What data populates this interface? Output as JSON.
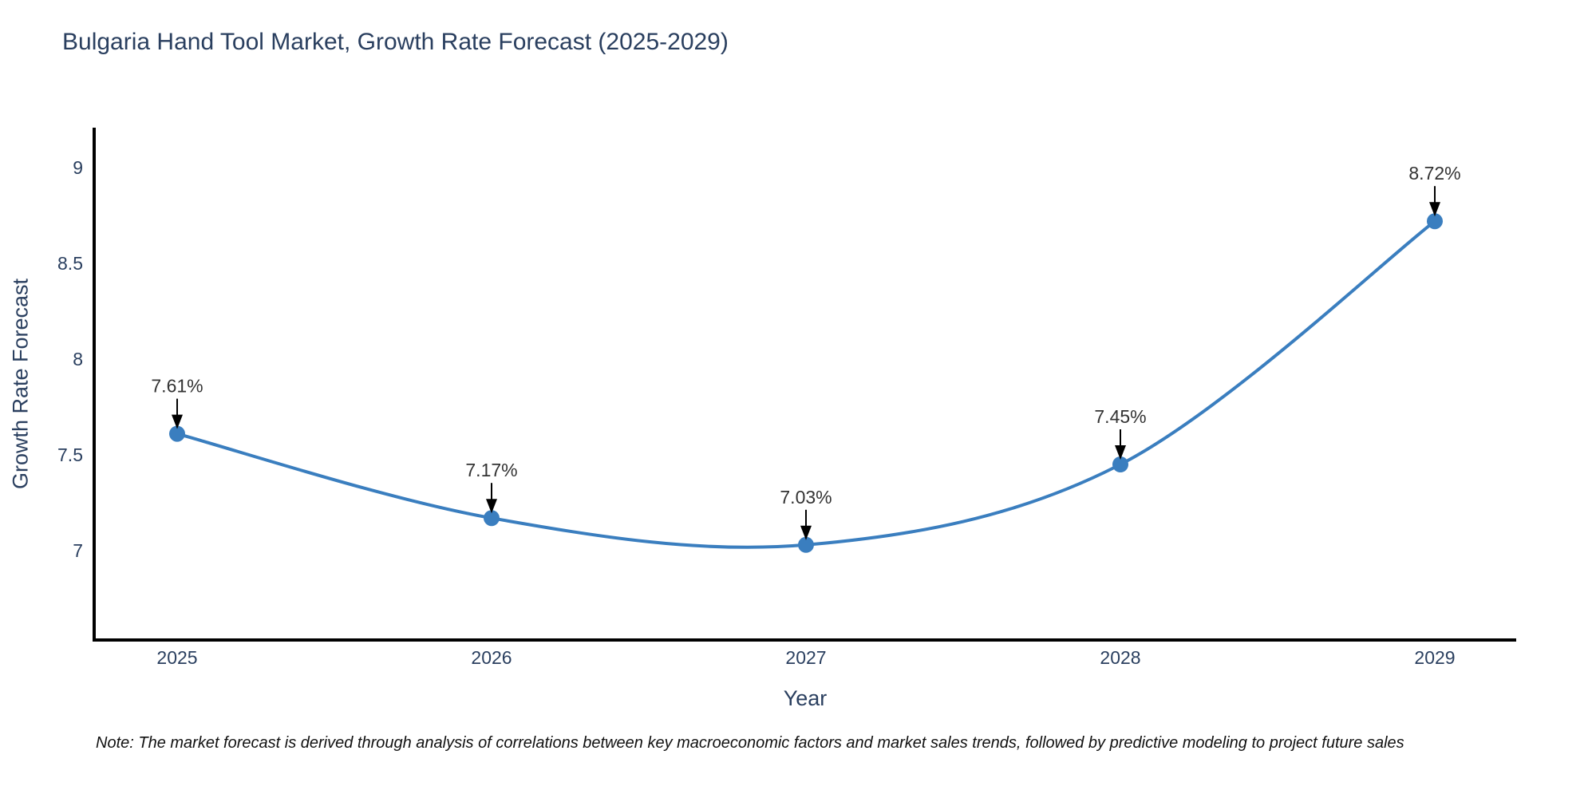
{
  "title": "Bulgaria Hand Tool Market, Growth Rate Forecast (2025-2029)",
  "note": "Note: The market forecast is derived through analysis of correlations between key macroeconomic factors and market sales trends, followed by predictive modeling to project future sales",
  "chart_data": {
    "type": "line",
    "title": "Bulgaria Hand Tool Market, Growth Rate Forecast (2025-2029)",
    "xlabel": "Year",
    "ylabel": "Growth Rate Forecast",
    "x": [
      "2025",
      "2026",
      "2027",
      "2028",
      "2029"
    ],
    "y": [
      7.61,
      7.17,
      7.03,
      7.45,
      8.72
    ],
    "point_labels": [
      "7.61%",
      "7.17%",
      "7.03%",
      "7.45%",
      "8.72%"
    ],
    "y_tick_labels": [
      "7",
      "7.5",
      "8",
      "8.5",
      "9"
    ],
    "y_tick_values": [
      7,
      7.5,
      8,
      8.5,
      9
    ],
    "ylim": [
      6.53,
      9.21
    ],
    "line_shape": "spline",
    "grid": false,
    "legend": false,
    "annotation_style": "value-above-with-down-arrow",
    "colors": {
      "line": "#3a7ebf",
      "marker": "#3a7ebf",
      "axis_line": "#000000",
      "axis_text": "#2a3f5f",
      "annotation_text": "#333333",
      "arrow": "#000000"
    }
  }
}
